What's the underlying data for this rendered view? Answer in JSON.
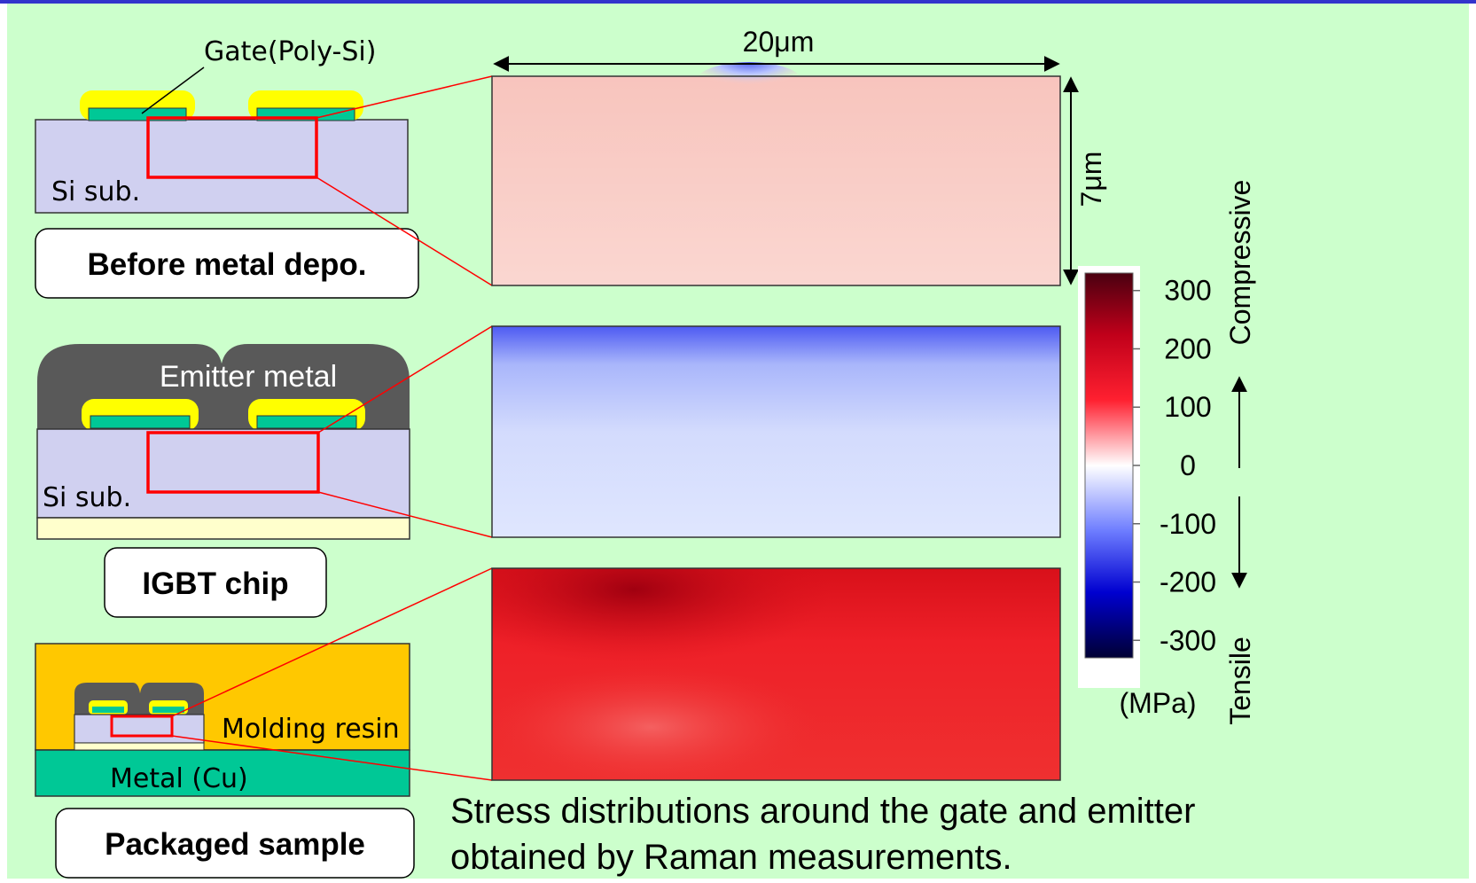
{
  "colors": {
    "background": "#ccffcc",
    "si_substrate": "#d0d0f0",
    "poly_si_gate": "#00c896",
    "gate_oxide": "#ffff00",
    "emitter_metal": "#595959",
    "molding_resin": "#ffc800",
    "metal_cu": "#00c896",
    "zoom_box": "#ff0000",
    "top_rule": "#3333cc"
  },
  "schematics": {
    "before": {
      "gate_label": "Gate(Poly-Si)",
      "substrate_label": "Si sub.",
      "caption": "Before metal depo."
    },
    "igbt": {
      "emitter_label": "Emitter metal",
      "substrate_label": "Si sub.",
      "caption": "IGBT chip"
    },
    "packaged": {
      "resin_label": "Molding resin",
      "metal_label": "Metal (Cu)",
      "caption": "Packaged sample"
    }
  },
  "maps": {
    "width_label": "20μm",
    "height_label": "7μm",
    "before": {
      "mean_stress_mpa": 40
    },
    "igbt": {
      "mean_stress_mpa": -50
    },
    "packaged": {
      "mean_stress_mpa": 200
    }
  },
  "colorbar": {
    "ticks": [
      "300",
      "200",
      "100",
      "0",
      "-100",
      "-200",
      "-300"
    ],
    "tick_values": [
      300,
      200,
      100,
      0,
      -100,
      -200,
      -300
    ],
    "unit": "(MPa)",
    "top_label": "Compressive",
    "bottom_label": "Tensile"
  },
  "caption": {
    "line1": "Stress distributions around the gate and emitter",
    "line2": "obtained by Raman measurements."
  }
}
